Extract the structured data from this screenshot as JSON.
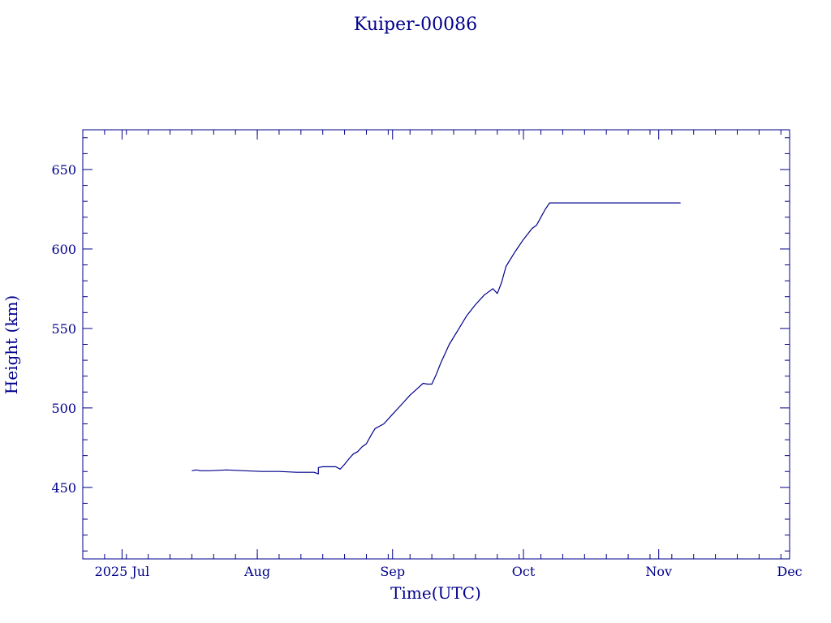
{
  "chart_data": {
    "type": "line",
    "title": "Kuiper-00086",
    "xlabel": "Time(UTC)",
    "ylabel": "Height (km)",
    "xlim": [
      "2025-06-22",
      "2025-12-01"
    ],
    "ylim": [
      405,
      675
    ],
    "x_ticks": [
      {
        "date": "2025-07-01",
        "label": "2025 Jul"
      },
      {
        "date": "2025-08-01",
        "label": "Aug"
      },
      {
        "date": "2025-09-01",
        "label": "Sep"
      },
      {
        "date": "2025-10-01",
        "label": "Oct"
      },
      {
        "date": "2025-11-01",
        "label": "Nov"
      },
      {
        "date": "2025-12-01",
        "label": "Dec"
      }
    ],
    "y_ticks": [
      450,
      500,
      550,
      600,
      650
    ],
    "grid": false,
    "colors": {
      "line": "#00008b",
      "axes": "#00008b",
      "text": "#00008b"
    },
    "series": [
      {
        "x": [
          "2025-07-17",
          "2025-07-18",
          "2025-07-19",
          "2025-07-21",
          "2025-07-25",
          "2025-07-29",
          "2025-08-02",
          "2025-08-06",
          "2025-08-10",
          "2025-08-14",
          "2025-08-15",
          "2025-08-15",
          "2025-08-16",
          "2025-08-17",
          "2025-08-19",
          "2025-08-20",
          "2025-08-21",
          "2025-08-22",
          "2025-08-23",
          "2025-08-24",
          "2025-08-25",
          "2025-08-26",
          "2025-08-27",
          "2025-08-28",
          "2025-08-30",
          "2025-09-01",
          "2025-09-03",
          "2025-09-05",
          "2025-09-07",
          "2025-09-08",
          "2025-09-09",
          "2025-09-10",
          "2025-09-11",
          "2025-09-12",
          "2025-09-13",
          "2025-09-14",
          "2025-09-16",
          "2025-09-18",
          "2025-09-20",
          "2025-09-22",
          "2025-09-24",
          "2025-09-25",
          "2025-09-26",
          "2025-09-27",
          "2025-09-29",
          "2025-10-01",
          "2025-10-03",
          "2025-10-04",
          "2025-10-05",
          "2025-10-06",
          "2025-10-07",
          "2025-10-10",
          "2025-10-15",
          "2025-10-20",
          "2025-10-25",
          "2025-10-30",
          "2025-11-03",
          "2025-11-06"
        ],
        "y": [
          460.5,
          461.0,
          460.5,
          460.5,
          461.0,
          460.5,
          460.0,
          460.0,
          459.5,
          459.5,
          458.5,
          462.5,
          463.0,
          463.0,
          463.0,
          461.5,
          464.5,
          468.0,
          471.0,
          472.5,
          475.5,
          477.5,
          482.5,
          487.0,
          490.0,
          496.0,
          502.0,
          508.0,
          513.0,
          515.5,
          515.0,
          515.0,
          521.0,
          528.0,
          534.0,
          540.0,
          549.0,
          558.0,
          565.0,
          571.0,
          575.0,
          572.0,
          579.0,
          589.0,
          598.0,
          606.0,
          613.0,
          615.0,
          620.0,
          625.0,
          629.0,
          629.0,
          629.0,
          629.0,
          629.0,
          629.0,
          629.0,
          629.0
        ]
      }
    ]
  }
}
